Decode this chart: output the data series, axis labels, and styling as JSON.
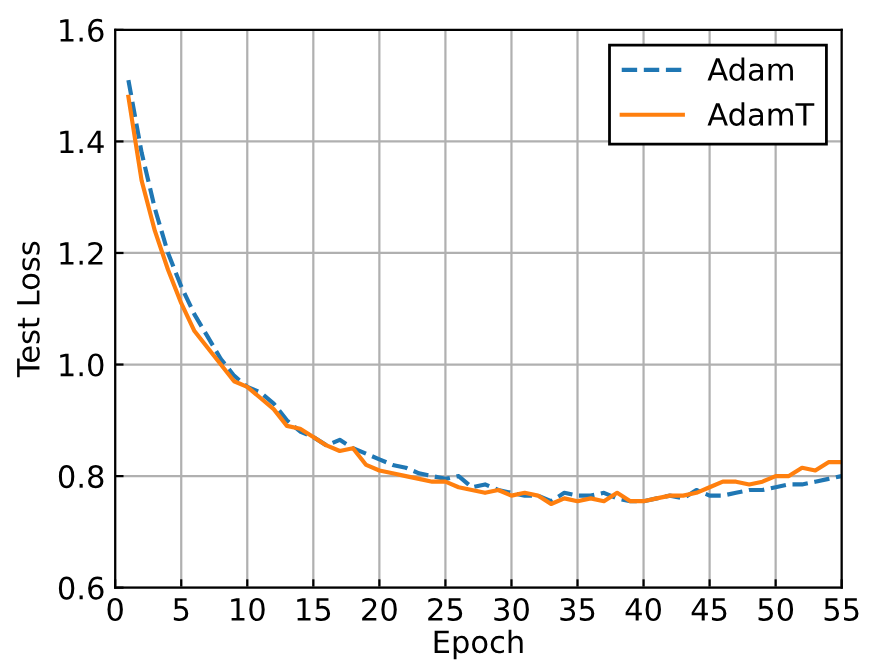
{
  "chart_data": {
    "type": "line",
    "xlabel": "Epoch",
    "ylabel": "Test Loss",
    "x": [
      1,
      2,
      3,
      4,
      5,
      6,
      7,
      8,
      9,
      10,
      11,
      12,
      13,
      14,
      15,
      16,
      17,
      18,
      19,
      20,
      21,
      22,
      23,
      24,
      25,
      26,
      27,
      28,
      29,
      30,
      31,
      32,
      33,
      34,
      35,
      36,
      37,
      38,
      39,
      40,
      41,
      42,
      43,
      44,
      45,
      46,
      47,
      48,
      49,
      50,
      51,
      52,
      53,
      54,
      55
    ],
    "series": [
      {
        "name": "Adam",
        "color": "#1f77b4",
        "line_style": "dashed",
        "values": [
          1.51,
          1.38,
          1.28,
          1.2,
          1.14,
          1.09,
          1.05,
          1.01,
          0.98,
          0.96,
          0.95,
          0.93,
          0.9,
          0.88,
          0.87,
          0.855,
          0.865,
          0.85,
          0.84,
          0.83,
          0.82,
          0.815,
          0.805,
          0.8,
          0.795,
          0.8,
          0.78,
          0.785,
          0.775,
          0.77,
          0.765,
          0.765,
          0.755,
          0.77,
          0.765,
          0.765,
          0.77,
          0.76,
          0.755,
          0.755,
          0.76,
          0.765,
          0.76,
          0.775,
          0.765,
          0.765,
          0.77,
          0.775,
          0.775,
          0.78,
          0.785,
          0.785,
          0.79,
          0.795,
          0.8
        ]
      },
      {
        "name": "AdamT",
        "color": "#ff7f0e",
        "line_style": "solid",
        "values": [
          1.48,
          1.33,
          1.24,
          1.17,
          1.11,
          1.06,
          1.03,
          1.0,
          0.97,
          0.96,
          0.94,
          0.92,
          0.89,
          0.885,
          0.87,
          0.855,
          0.845,
          0.85,
          0.82,
          0.81,
          0.805,
          0.8,
          0.795,
          0.79,
          0.79,
          0.78,
          0.775,
          0.77,
          0.775,
          0.765,
          0.77,
          0.765,
          0.75,
          0.76,
          0.755,
          0.76,
          0.755,
          0.77,
          0.755,
          0.755,
          0.76,
          0.765,
          0.765,
          0.77,
          0.78,
          0.79,
          0.79,
          0.785,
          0.79,
          0.8,
          0.8,
          0.815,
          0.81,
          0.825,
          0.825
        ]
      }
    ],
    "xlim": [
      0,
      55
    ],
    "xticks": [
      0,
      5,
      10,
      15,
      20,
      25,
      30,
      35,
      40,
      45,
      50,
      55
    ],
    "ylim": [
      0.6,
      1.6
    ],
    "yticks": [
      {
        "value": 0.6,
        "label": "0.6"
      },
      {
        "value": 0.8,
        "label": "0.8"
      },
      {
        "value": 1.0,
        "label": "1.0"
      },
      {
        "value": 1.2,
        "label": "1.2"
      },
      {
        "value": 1.4,
        "label": "1.4"
      },
      {
        "value": 1.6,
        "label": "1.6"
      }
    ],
    "grid": true,
    "legend": "top right",
    "marker": "none"
  }
}
